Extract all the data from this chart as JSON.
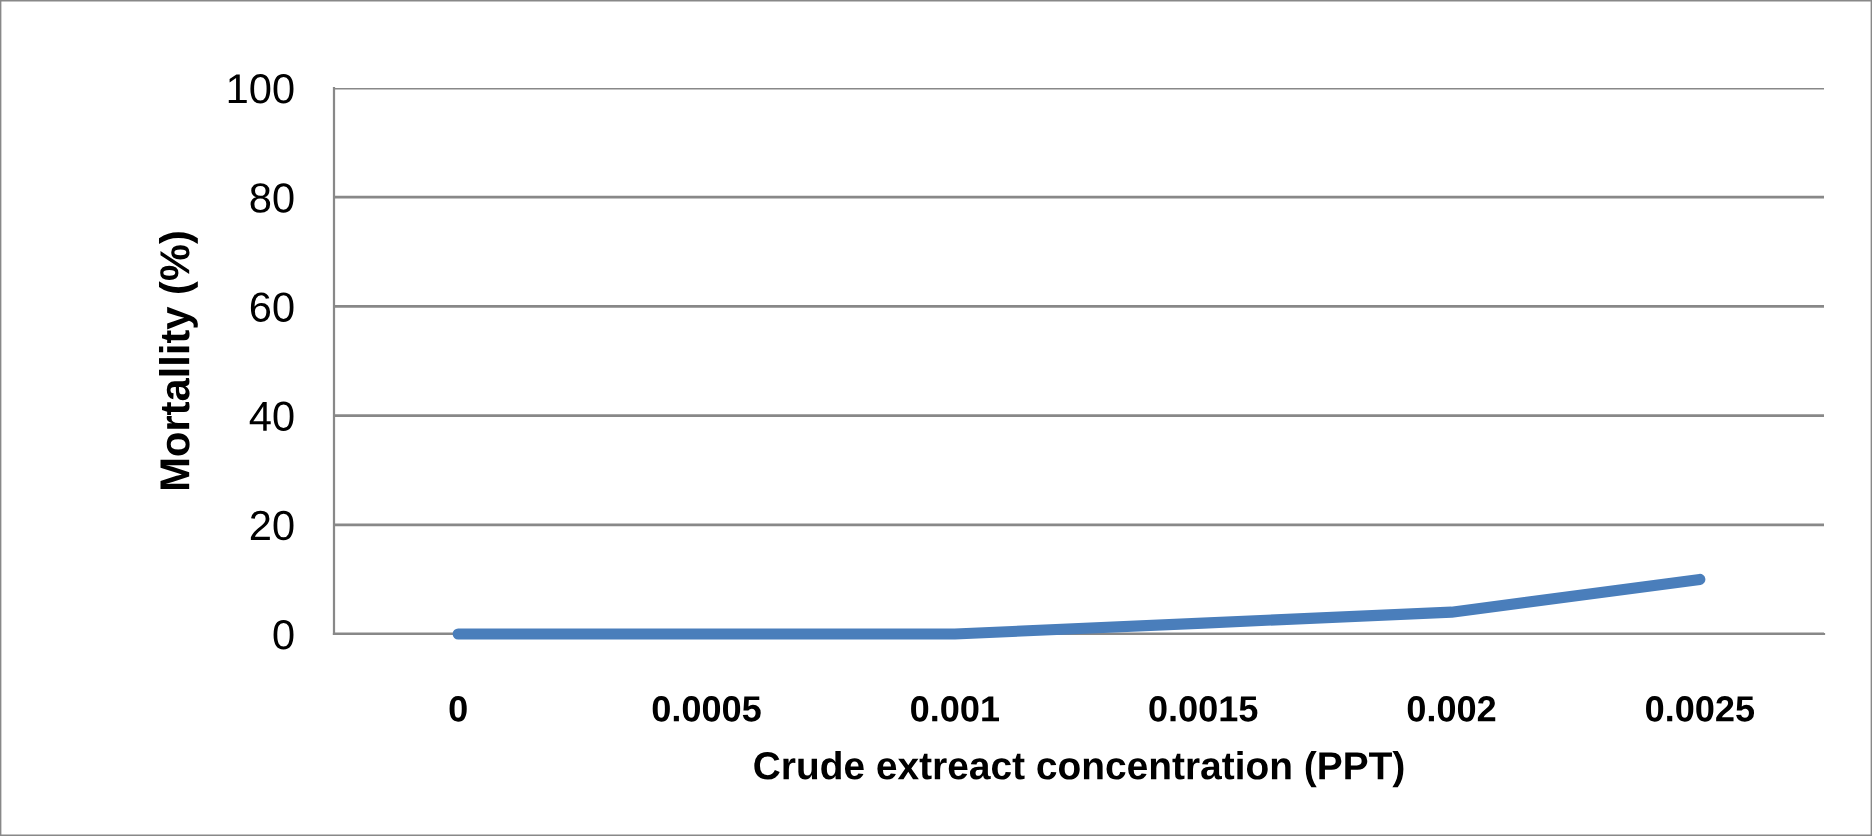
{
  "chart_data": {
    "type": "line",
    "xlabel": "Crude extreact concentration (PPT)",
    "ylabel": "Mortallity (%)",
    "categories": [
      "0",
      "0.0005",
      "0.001",
      "0.0015",
      "0.002",
      "0.0025"
    ],
    "series": [
      {
        "color": "#4a7ebb",
        "values": [
          0,
          0,
          0,
          2,
          4,
          10
        ]
      }
    ],
    "ylim": [
      0,
      100
    ],
    "yticks": [
      0,
      20,
      40,
      60,
      80,
      100
    ],
    "grid": "y",
    "marker": "none",
    "line_style": "solid"
  }
}
